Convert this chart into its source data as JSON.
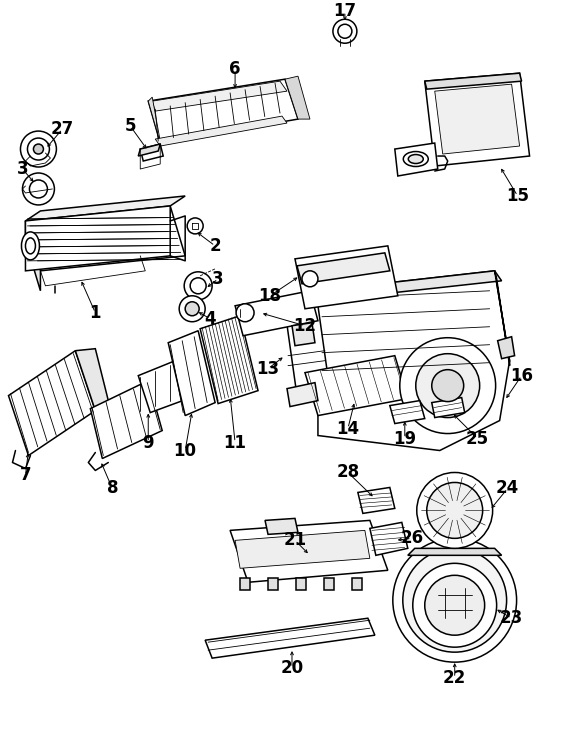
{
  "bg_color": "#ffffff",
  "line_color": "#000000",
  "fig_width": 5.72,
  "fig_height": 7.45,
  "dpi": 100,
  "font_size": 12,
  "font_weight": "bold",
  "lw_main": 1.1,
  "lw_thin": 0.6,
  "lw_thick": 1.5
}
